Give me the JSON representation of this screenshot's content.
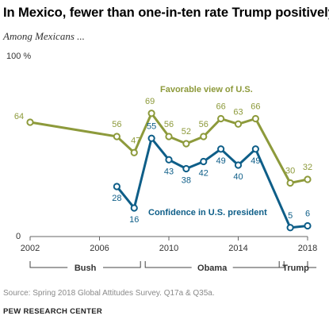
{
  "title": "In Mexico, fewer than one-in-ten rate Trump positively",
  "subtitle": "Among Mexicans ...",
  "source": "Source: Spring 2018 Global Attitudes Survey. Q17a & Q35a.",
  "credit": "PEW RESEARCH CENTER",
  "chart_data": {
    "type": "line",
    "title": "In Mexico, fewer than one-in-ten rate Trump positively",
    "subtitle": "Among Mexicans ...",
    "xlim": [
      2002,
      2018
    ],
    "ylim": [
      0,
      100
    ],
    "x_ticks": [
      "2002",
      "2006",
      "2010",
      "2014",
      "2018"
    ],
    "x_tick_values": [
      2002,
      2006,
      2010,
      2014,
      2018
    ],
    "y_top_label": "100 %",
    "y_bottom_label": "0",
    "grid": false,
    "legend": "inline labels",
    "presidencies": [
      {
        "label": "Bush",
        "start": 2002,
        "end": 2008.5
      },
      {
        "label": "Obama",
        "start": 2008.5,
        "end": 2016.5
      },
      {
        "label": "Trump",
        "start": 2016.5,
        "end": 2018
      }
    ],
    "series": [
      {
        "name": "Favorable view of U.S.",
        "color": "#8d9a3b",
        "x": [
          2002,
          2007,
          2008,
          2009,
          2010,
          2011,
          2012,
          2013,
          2014,
          2015,
          2017,
          2018
        ],
        "values": [
          64,
          56,
          47,
          69,
          56,
          52,
          56,
          66,
          63,
          66,
          30,
          32
        ],
        "labels": [
          "64",
          "56",
          "47",
          "69",
          "56",
          "52",
          "56",
          "66",
          "63",
          "66",
          "30",
          "32"
        ]
      },
      {
        "name": "Confidence in U.S. president",
        "color": "#0e5e88",
        "x": [
          2007,
          2008,
          2009,
          2010,
          2011,
          2012,
          2013,
          2014,
          2015,
          2017,
          2018
        ],
        "values": [
          28,
          16,
          55,
          43,
          38,
          42,
          49,
          40,
          49,
          5,
          6
        ],
        "labels": [
          "28",
          "16",
          "55",
          "43",
          "38",
          "42",
          "49",
          "40",
          "49",
          "5",
          "6"
        ]
      }
    ]
  }
}
